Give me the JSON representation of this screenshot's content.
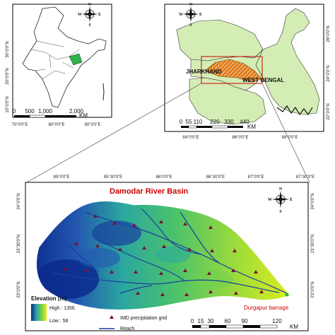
{
  "india_panel": {
    "x_ticks": [
      "70°0'0\"E",
      "80°0'0\"E",
      "90°0'0\"E"
    ],
    "y_ticks": [
      "30°0'0\"N",
      "20°0'0\"N",
      "10°0'0\"N"
    ],
    "scale_numbers": [
      "0",
      "500",
      "1,000",
      "2,000"
    ],
    "scale_unit": "KM",
    "compass": {
      "n": "N",
      "e": "E",
      "s": "S",
      "w": "W"
    }
  },
  "state_panel": {
    "x_ticks": [
      "84°0'0\"E",
      "86°0'0\"E",
      "88°0'0\"E"
    ],
    "y_ticks_right": [
      "26°0'0\"N",
      "24°0'0\"N",
      "22°0'0\"N"
    ],
    "scale_numbers": [
      "0",
      "55",
      "110",
      "220",
      "330",
      "440"
    ],
    "scale_unit": "KM",
    "labels": {
      "jharkhand": "JHARKHAND",
      "west_bengal": "WEST BENGAL"
    },
    "compass": {
      "n": "N",
      "e": "E",
      "s": "S",
      "w": "W"
    }
  },
  "basin_panel": {
    "title": "Damodar River Basin",
    "top_ticks": [
      "85°0'0\"E",
      "85°30'0\"E",
      "86°0'0\"E",
      "86°30'0\"E",
      "87°0'0\"E",
      "87°30'0\"E"
    ],
    "left_ticks": [
      "24°0'0\"N",
      "23°30'0\"N",
      "23°0'0\"N"
    ],
    "right_ticks": [
      "24°0'0\"N",
      "23°30'0\"N",
      "23°0'0\"N"
    ],
    "compass": {
      "n": "N",
      "e": "E",
      "s": "S",
      "w": "W"
    },
    "outlet_label": "Durgapur barrage",
    "legend": {
      "elevation_title": "Elevation (m)",
      "high_label": "High : 1356",
      "low_label": "Low : 58",
      "grid_label": "IMD precipitation grid",
      "reach_label": "Reach"
    },
    "scale_numbers": [
      "0",
      "15",
      "30",
      "60",
      "90",
      "120"
    ],
    "scale_unit": "KM"
  },
  "colors": {
    "state_fill": "#d4edb5",
    "jharkhand_fill": "#e07b1a",
    "highlight_red": "#cc0000",
    "river_blue": "#1a3f9e",
    "grid_marker": "#7a1030",
    "elev_high": "#0b2a8c",
    "elev_mid": "#2aa7a0",
    "elev_low": "#e6ef1a"
  }
}
